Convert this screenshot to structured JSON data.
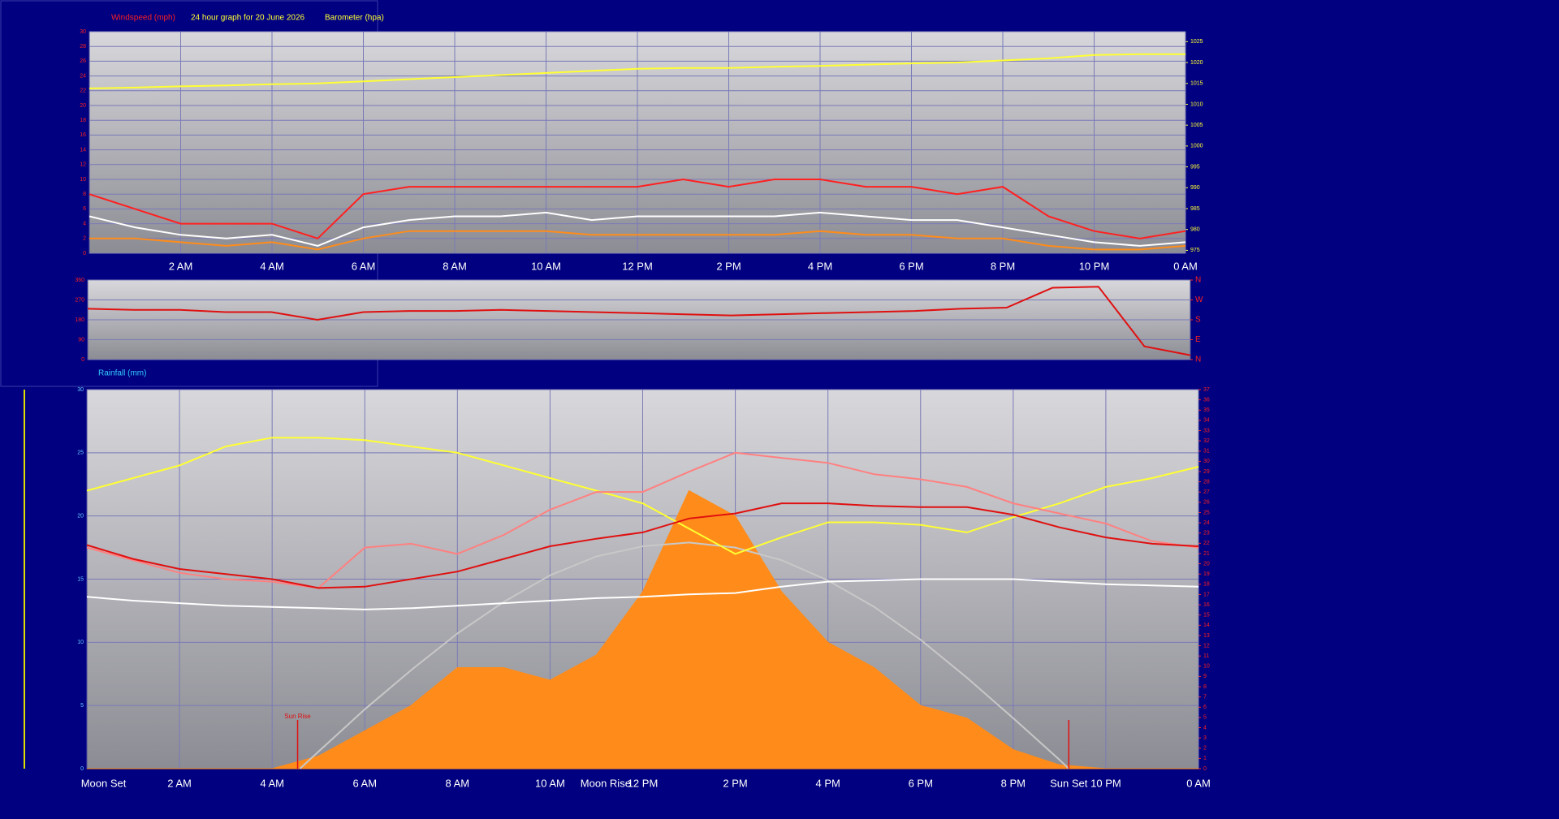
{
  "chart_data": [
    {
      "type": "line",
      "title": "24 hour graph for 20 June 2026",
      "y_label": "Windspeed (mph)",
      "y2_label": "Barometer (hpa)",
      "title_color": "#ffff33",
      "y_label_color": "#ff2020",
      "y2_label_color": "#ffff33",
      "x": [
        0,
        1,
        2,
        3,
        4,
        5,
        6,
        7,
        8,
        9,
        10,
        11,
        12,
        13,
        14,
        15,
        16,
        17,
        18,
        19,
        20,
        21,
        22,
        23,
        24
      ],
      "xlim": [
        0,
        24
      ],
      "xticks": [
        {
          "value": 2,
          "label": "2 AM"
        },
        {
          "value": 4,
          "label": "4 AM"
        },
        {
          "value": 6,
          "label": "6 AM"
        },
        {
          "value": 8,
          "label": "8 AM"
        },
        {
          "value": 10,
          "label": "10 AM"
        },
        {
          "value": 12,
          "label": "12 PM"
        },
        {
          "value": 14,
          "label": "2 PM"
        },
        {
          "value": 16,
          "label": "4 PM"
        },
        {
          "value": 18,
          "label": "6 PM"
        },
        {
          "value": 20,
          "label": "8 PM"
        },
        {
          "value": 22,
          "label": "10 PM"
        },
        {
          "value": 24,
          "label": "0 AM"
        }
      ],
      "ylim": [
        0,
        30
      ],
      "yticks": [
        0,
        2,
        4,
        6,
        8,
        10,
        12,
        14,
        16,
        18,
        20,
        22,
        24,
        26,
        28,
        30
      ],
      "ytick_color": "#ff2020",
      "y2lim": [
        974.3,
        1027.4
      ],
      "y2ticks": [
        975,
        980,
        985,
        990,
        995,
        1000,
        1005,
        1010,
        1015,
        1020,
        1025
      ],
      "y2tick_color": "#ffff33",
      "grid": true,
      "series": [
        {
          "color": "#ff2020",
          "values": [
            8,
            6,
            4,
            4,
            4,
            2,
            8,
            9,
            9,
            9,
            9,
            9,
            9,
            10,
            9,
            10,
            10,
            9,
            9,
            8,
            9,
            5,
            3,
            2,
            3
          ]
        },
        {
          "color": "#ff8c1a",
          "values": [
            2,
            2,
            1.5,
            1,
            1.5,
            0.5,
            2,
            3,
            3,
            3,
            3,
            2.5,
            2.5,
            2.5,
            2.5,
            2.5,
            3,
            2.5,
            2.5,
            2,
            2,
            1,
            0.5,
            0.5,
            1
          ]
        },
        {
          "color": "#ffffff",
          "values": [
            5,
            3.5,
            2.5,
            2,
            2.5,
            1,
            3.5,
            4.5,
            5,
            5,
            5.5,
            4.5,
            5,
            5,
            5,
            5,
            5.5,
            5,
            4.5,
            4.5,
            3.5,
            2.5,
            1.5,
            1,
            1.5
          ]
        },
        {
          "color": "#ffff33",
          "axis": "y2",
          "values": [
            1013.8,
            1014,
            1014.3,
            1014.5,
            1014.8,
            1015,
            1015.5,
            1016,
            1016.5,
            1017,
            1017.5,
            1018,
            1018.5,
            1018.7,
            1018.7,
            1019,
            1019.2,
            1019.5,
            1019.8,
            1020,
            1020.5,
            1021,
            1021.8,
            1022,
            1022
          ]
        }
      ]
    },
    {
      "type": "line",
      "x": [
        0,
        1,
        2,
        3,
        4,
        5,
        6,
        7,
        8,
        9,
        10,
        11,
        12,
        13,
        14,
        15,
        16,
        17,
        18,
        19,
        20,
        21,
        22,
        23,
        24
      ],
      "xlim": [
        0,
        24
      ],
      "ylim": [
        0,
        360
      ],
      "yticks": [
        0,
        90,
        180,
        270,
        360
      ],
      "ytick_color": "#ff2020",
      "y2lim": [
        0,
        360
      ],
      "y2ticks": [
        {
          "value": 360,
          "label": "N"
        },
        {
          "value": 270,
          "label": "W"
        },
        {
          "value": 180,
          "label": "S"
        },
        {
          "value": 90,
          "label": "E"
        },
        {
          "value": 0,
          "label": "N"
        }
      ],
      "y2tick_color": "#ff2020",
      "grid": true,
      "series": [
        {
          "color": "#e01010",
          "values": [
            230,
            225,
            225,
            215,
            215,
            180,
            215,
            220,
            220,
            225,
            220,
            215,
            210,
            205,
            200,
            205,
            210,
            215,
            220,
            230,
            235,
            325,
            330,
            60,
            20
          ]
        }
      ]
    },
    {
      "type": "line",
      "y_label": "Rainfall (mm)",
      "y_label_color": "#33ccff",
      "x": [
        0,
        1,
        2,
        3,
        4,
        5,
        6,
        7,
        8,
        9,
        10,
        11,
        12,
        13,
        14,
        15,
        16,
        17,
        18,
        19,
        20,
        21,
        22,
        23,
        24
      ],
      "xlim": [
        0,
        24
      ],
      "xticks": [
        {
          "value": 2,
          "label": "2 AM"
        },
        {
          "value": 4,
          "label": "4 AM"
        },
        {
          "value": 6,
          "label": "6 AM"
        },
        {
          "value": 8,
          "label": "8 AM"
        },
        {
          "value": 10,
          "label": "10 AM"
        },
        {
          "value": 12,
          "label": "12 PM"
        },
        {
          "value": 14,
          "label": "2 PM"
        },
        {
          "value": 16,
          "label": "4 PM"
        },
        {
          "value": 18,
          "label": "6 PM"
        },
        {
          "value": 20,
          "label": "8 PM"
        },
        {
          "value": 22,
          "label": "10 PM"
        },
        {
          "value": 24,
          "label": "0 AM"
        }
      ],
      "ylim": [
        0,
        30
      ],
      "yticks": [
        0,
        5,
        10,
        15,
        20,
        25,
        30
      ],
      "ytick_color": "#66ccff",
      "y2lim": [
        0,
        37
      ],
      "y2ticks": [
        0,
        1,
        2,
        3,
        4,
        5,
        6,
        7,
        8,
        9,
        10,
        11,
        12,
        13,
        14,
        15,
        16,
        17,
        18,
        19,
        20,
        21,
        22,
        23,
        24,
        25,
        26,
        27,
        28,
        29,
        30,
        31,
        32,
        33,
        34,
        35,
        36,
        37
      ],
      "y2tick_color": "#ff2020",
      "grid": true,
      "series": [
        {
          "color": "#ff8c1a",
          "style": "area",
          "values": [
            0,
            0,
            0,
            0,
            0,
            1,
            3,
            5,
            8,
            8,
            7,
            9,
            14,
            22,
            20,
            14,
            10,
            8,
            5,
            4,
            1.5,
            0.3,
            0,
            0,
            0
          ]
        },
        {
          "color": "#c8c8c8",
          "x": [
            4.6,
            5,
            6,
            7,
            8,
            9,
            10,
            11,
            12,
            13,
            14,
            15,
            16,
            17,
            18,
            19,
            20,
            21,
            21.2
          ],
          "values": [
            0,
            1.35,
            4.7,
            7.8,
            10.7,
            13.2,
            15.3,
            16.8,
            17.6,
            17.9,
            17.5,
            16.5,
            14.9,
            12.8,
            10.2,
            7.2,
            4,
            0.7,
            0
          ]
        },
        {
          "color": "#ffff33",
          "values": [
            22,
            23,
            24,
            25.5,
            26.2,
            26.2,
            26,
            25.5,
            25,
            24,
            23,
            22,
            21,
            19,
            17,
            18.3,
            19.5,
            19.5,
            19.3,
            18.7,
            19.9,
            21,
            22.3,
            23,
            23.9
          ]
        },
        {
          "color": "#ff8080",
          "values": [
            17.5,
            16.5,
            15.5,
            15,
            14.8,
            14.3,
            17.5,
            17.8,
            17,
            18.5,
            20.5,
            21.9,
            21.9,
            23.5,
            25,
            24.6,
            24.2,
            23.3,
            22.9,
            22.3,
            21,
            20.2,
            19.4,
            18,
            17.5
          ]
        },
        {
          "color": "#e01010",
          "values": [
            17.7,
            16.6,
            15.8,
            15.4,
            15,
            14.3,
            14.4,
            15,
            15.6,
            16.6,
            17.6,
            18.2,
            18.7,
            19.8,
            20.2,
            21,
            21,
            20.8,
            20.7,
            20.7,
            20.1,
            19.1,
            18.3,
            17.8,
            17.6
          ]
        },
        {
          "color": "#ffffff",
          "values": [
            13.6,
            13.3,
            13.1,
            12.9,
            12.8,
            12.7,
            12.6,
            12.7,
            12.9,
            13.1,
            13.3,
            13.5,
            13.6,
            13.8,
            13.9,
            14.4,
            14.8,
            14.9,
            15,
            15,
            15,
            14.8,
            14.6,
            14.5,
            14.4
          ]
        }
      ],
      "events": [
        {
          "label": "Moon Set",
          "x": 0.36,
          "position": "below"
        },
        {
          "label": "Sun Rise",
          "x": 4.55,
          "position": "above",
          "marker": true
        },
        {
          "label": "Moon Rise",
          "x": 11.2,
          "position": "below"
        },
        {
          "label": "Sun Set",
          "x": 21.2,
          "position": "below",
          "marker": true
        }
      ]
    }
  ]
}
